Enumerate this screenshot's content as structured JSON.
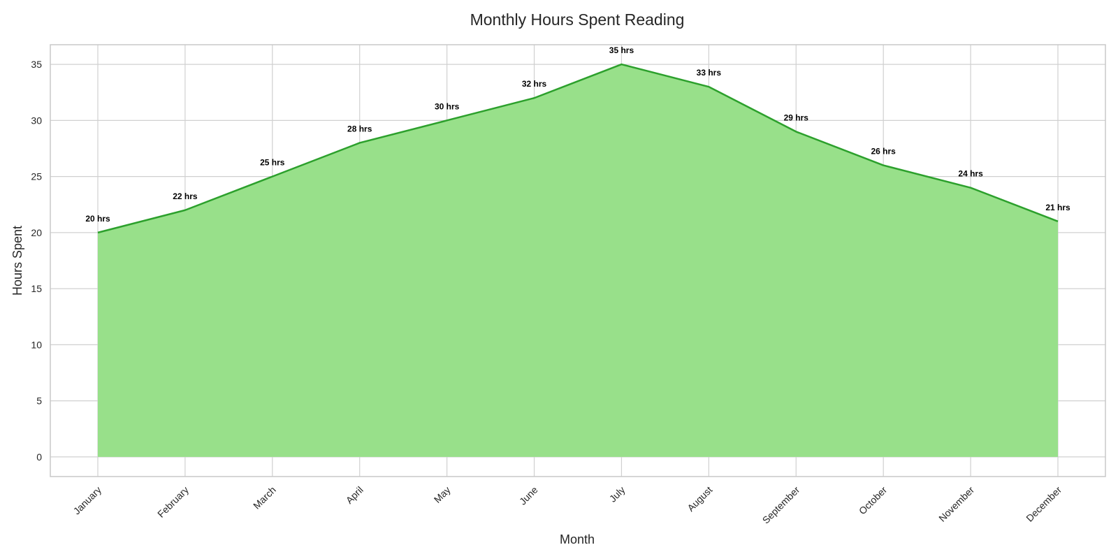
{
  "chart_data": {
    "type": "area",
    "title": "Monthly Hours Spent Reading",
    "xlabel": "Month",
    "ylabel": "Hours Spent",
    "categories": [
      "January",
      "February",
      "March",
      "April",
      "May",
      "June",
      "July",
      "August",
      "September",
      "October",
      "November",
      "December"
    ],
    "series": [
      {
        "values": [
          20,
          22,
          25,
          28,
          30,
          32,
          35,
          33,
          29,
          26,
          24,
          21
        ],
        "data_labels": [
          "20 hrs",
          "22 hrs",
          "25 hrs",
          "28 hrs",
          "30 hrs",
          "32 hrs",
          "35 hrs",
          "33 hrs",
          "29 hrs",
          "26 hrs",
          "24 hrs",
          "21 hrs"
        ]
      }
    ],
    "yticks": [
      0,
      5,
      10,
      15,
      20,
      25,
      30,
      35
    ],
    "ylim": [
      -1.75,
      36.75
    ],
    "grid": true,
    "x_tick_rotation": -45,
    "colors": {
      "fill": "#98e08a",
      "line": "#2ca02c",
      "grid": "#d0d0d0",
      "frame": "#c8c8c8"
    }
  }
}
